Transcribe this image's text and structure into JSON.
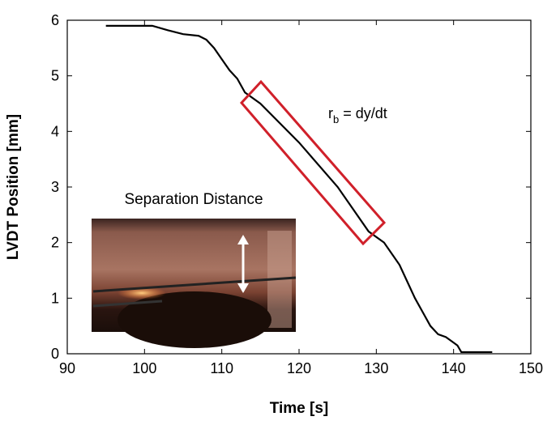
{
  "chart_data": {
    "type": "line",
    "x_label": "Time [s]",
    "y_label": "LVDT Position [mm]",
    "xlim": [
      90,
      150
    ],
    "xticks": [
      90,
      100,
      110,
      120,
      130,
      140,
      150
    ],
    "ylim": [
      0,
      6
    ],
    "yticks": [
      0,
      1,
      2,
      3,
      4,
      5,
      6
    ],
    "series": [
      {
        "color": "#000000",
        "x": [
          95,
          101,
          103,
          105,
          107,
          108,
          109,
          110,
          111,
          112,
          113,
          115,
          120,
          125,
          129,
          131,
          133,
          134,
          135,
          136,
          137,
          138,
          139,
          140,
          140.5,
          141,
          145
        ],
        "values": [
          5.9,
          5.9,
          5.82,
          5.75,
          5.72,
          5.65,
          5.5,
          5.3,
          5.1,
          4.95,
          4.7,
          4.5,
          3.8,
          3.0,
          2.2,
          2.0,
          1.6,
          1.3,
          1.0,
          0.75,
          0.5,
          0.35,
          0.3,
          0.2,
          0.15,
          0.03,
          0.03
        ]
      }
    ],
    "annotation": {
      "base": "r",
      "subscript": "b",
      "text": "= dy/dt"
    },
    "inset_label": "Separation Distance"
  }
}
